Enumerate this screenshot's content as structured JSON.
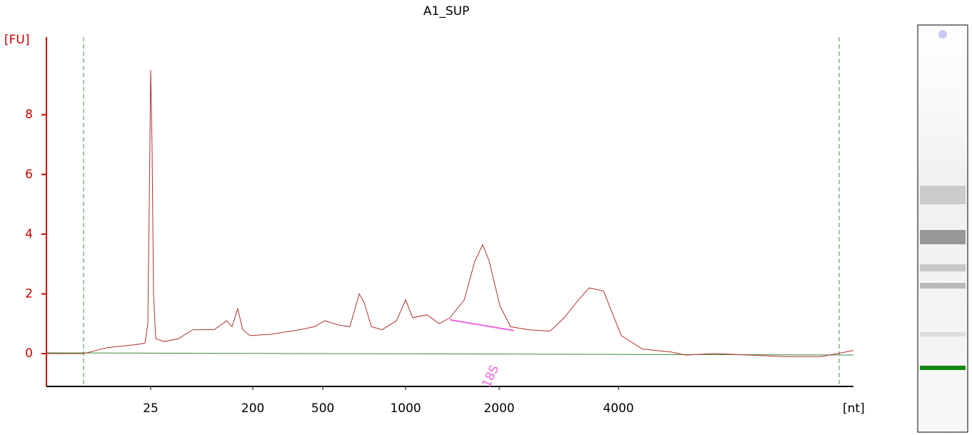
{
  "chart_data": {
    "type": "line",
    "title": "A1_SUP",
    "ylabel": "[FU]",
    "xlabel": "[nt]",
    "xscale": "log",
    "xlim": [
      3,
      15000
    ],
    "xticks": [
      25,
      200,
      500,
      1000,
      2000,
      4000
    ],
    "ylim": [
      -1.1,
      10.6
    ],
    "yticks": [
      0,
      2,
      4,
      6,
      8
    ],
    "x": [
      3,
      5.0,
      6.4,
      10.3,
      18.4,
      22.3,
      23.6,
      24.3,
      25,
      25.7,
      26.5,
      27.7,
      33,
      44,
      59,
      91,
      118,
      131,
      147,
      163,
      189,
      255,
      371,
      447,
      509,
      574,
      627,
      678,
      707,
      751,
      821,
      926,
      1000,
      1054,
      1172,
      1282,
      1388,
      1543,
      1670,
      1770,
      1857,
      2008,
      2137,
      2370,
      2685,
      2918,
      3170,
      3374,
      3666,
      3820,
      4064,
      4584,
      5384,
      5832,
      6848,
      8368,
      10228,
      12500,
      15000
    ],
    "series": [
      {
        "color": "#b03030",
        "values": [
          0.0,
          0.0,
          0.0,
          0.2,
          0.3,
          0.35,
          1.0,
          5,
          9.5,
          7,
          2,
          0.5,
          0.4,
          0.5,
          0.8,
          0.8,
          1.1,
          0.9,
          1.5,
          0.8,
          0.6,
          0.65,
          0.8,
          0.9,
          1.1,
          0.95,
          0.9,
          2.0,
          1.7,
          0.9,
          0.8,
          1.1,
          1.8,
          1.2,
          1.3,
          1.0,
          1.2,
          1.8,
          3.1,
          3.65,
          3.1,
          1.6,
          0.9,
          0.8,
          0.75,
          1.2,
          1.8,
          2.2,
          2.1,
          1.5,
          0.6,
          0.15,
          0.05,
          -0.05,
          0.0,
          -0.05,
          -0.1,
          -0.1,
          0.1
        ]
      }
    ],
    "peak_baseline": {
      "color": "#ee66dd",
      "x": [
        1388,
        2180
      ],
      "values": [
        1.13,
        0.77
      ]
    },
    "annotations": [
      {
        "text": "18S",
        "x": 1880,
        "color": "#ee66dd"
      }
    ],
    "axis_color": "#cc0000"
  }
}
